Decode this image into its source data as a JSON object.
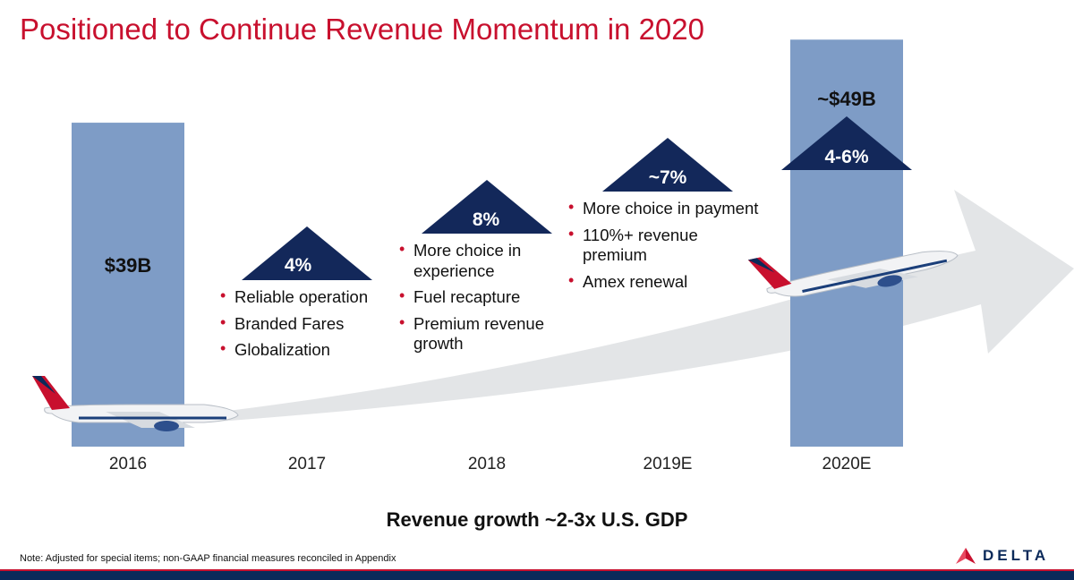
{
  "title": "Positioned to Continue Revenue Momentum in 2020",
  "chart_data": {
    "type": "bar",
    "categories": [
      "2016",
      "2017",
      "2018",
      "2019E",
      "2020E"
    ],
    "bars": [
      {
        "category": "2016",
        "value": 39,
        "label": "$39B"
      },
      {
        "category": "2020E",
        "value": 49,
        "label": "~$49B"
      }
    ],
    "growth": [
      {
        "category": "2017",
        "label": "4%"
      },
      {
        "category": "2018",
        "label": "8%"
      },
      {
        "category": "2019E",
        "label": "~7%"
      },
      {
        "category": "2020E",
        "label": "4-6%"
      }
    ],
    "bar_color": "#7e9cc6",
    "triangle_color": "#13285a"
  },
  "drivers": {
    "y2017": [
      "Reliable operation",
      "Branded Fares",
      "Globalization"
    ],
    "y2018": [
      "More choice in experience",
      "Fuel recapture",
      "Premium revenue growth"
    ],
    "y2019": [
      "More choice in payment",
      "110%+ revenue premium",
      "Amex renewal"
    ]
  },
  "footer": "Revenue growth ~2-3x U.S. GDP",
  "note": "Note: Adjusted for special items; non-GAAP financial measures reconciled in Appendix",
  "brand": {
    "name": "DELTA",
    "red": "#c8102e",
    "navy": "#0b2a5a"
  },
  "icons": {
    "plane": "airplane-icon",
    "logo": "delta-widget-icon"
  }
}
